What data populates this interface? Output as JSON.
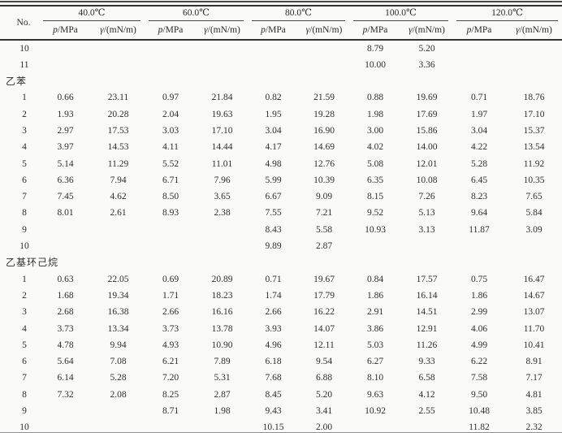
{
  "table": {
    "no_header": "No.",
    "temps": [
      "40.0℃",
      "60.0℃",
      "80.0℃",
      "100.0℃",
      "120.0℃"
    ],
    "p_sym": "p",
    "p_unit": "/MPa",
    "g_sym": "γ",
    "g_unit": "/(mN/m)",
    "colors": {
      "background": "#fafaf8",
      "text": "#2e2e2e",
      "rule": "#333333"
    },
    "sections": [
      {
        "title": "",
        "rows": [
          {
            "no": "10",
            "v": [
              "",
              "",
              "",
              "",
              "",
              "",
              "8.79",
              "5.20",
              "",
              ""
            ]
          },
          {
            "no": "11",
            "v": [
              "",
              "",
              "",
              "",
              "",
              "",
              "10.00",
              "3.36",
              "",
              ""
            ]
          }
        ]
      },
      {
        "title": "乙苯",
        "rows": [
          {
            "no": "1",
            "v": [
              "0.66",
              "23.11",
              "0.97",
              "21.84",
              "0.82",
              "21.59",
              "0.88",
              "19.69",
              "0.71",
              "18.76"
            ]
          },
          {
            "no": "2",
            "v": [
              "1.93",
              "20.28",
              "2.04",
              "19.63",
              "1.95",
              "19.28",
              "1.98",
              "17.69",
              "1.97",
              "17.10"
            ]
          },
          {
            "no": "3",
            "v": [
              "2.97",
              "17.53",
              "3.03",
              "17.10",
              "3.04",
              "16.90",
              "3.00",
              "15.86",
              "3.04",
              "15.37"
            ]
          },
          {
            "no": "4",
            "v": [
              "3.97",
              "14.53",
              "4.11",
              "14.44",
              "4.17",
              "14.69",
              "4.02",
              "14.00",
              "4.22",
              "13.54"
            ]
          },
          {
            "no": "5",
            "v": [
              "5.14",
              "11.29",
              "5.52",
              "11.01",
              "4.98",
              "12.76",
              "5.08",
              "12.01",
              "5.28",
              "11.92"
            ]
          },
          {
            "no": "6",
            "v": [
              "6.36",
              "7.94",
              "6.71",
              "7.96",
              "5.99",
              "10.39",
              "6.35",
              "10.08",
              "6.45",
              "10.35"
            ]
          },
          {
            "no": "7",
            "v": [
              "7.45",
              "4.62",
              "8.50",
              "3.65",
              "6.67",
              "9.09",
              "8.15",
              "7.26",
              "8.23",
              "7.65"
            ]
          },
          {
            "no": "8",
            "v": [
              "8.01",
              "2.61",
              "8.93",
              "2.38",
              "7.55",
              "7.21",
              "9.52",
              "5.13",
              "9.64",
              "5.84"
            ]
          },
          {
            "no": "9",
            "v": [
              "",
              "",
              "",
              "",
              "8.43",
              "5.58",
              "10.93",
              "3.13",
              "11.87",
              "3.09"
            ]
          },
          {
            "no": "10",
            "v": [
              "",
              "",
              "",
              "",
              "9.89",
              "2.87",
              "",
              "",
              "",
              ""
            ]
          }
        ]
      },
      {
        "title": "乙基环己烷",
        "rows": [
          {
            "no": "1",
            "v": [
              "0.63",
              "22.05",
              "0.69",
              "20.89",
              "0.71",
              "19.67",
              "0.84",
              "17.57",
              "0.75",
              "16.47"
            ]
          },
          {
            "no": "2",
            "v": [
              "1.68",
              "19.34",
              "1.71",
              "18.23",
              "1.74",
              "17.79",
              "1.86",
              "16.14",
              "1.86",
              "14.67"
            ]
          },
          {
            "no": "3",
            "v": [
              "2.68",
              "16.38",
              "2.66",
              "16.16",
              "2.66",
              "16.22",
              "2.91",
              "14.51",
              "2.99",
              "13.07"
            ]
          },
          {
            "no": "4",
            "v": [
              "3.73",
              "13.34",
              "3.73",
              "13.78",
              "3.93",
              "14.07",
              "3.86",
              "12.91",
              "4.06",
              "11.70"
            ]
          },
          {
            "no": "5",
            "v": [
              "4.78",
              "9.94",
              "4.93",
              "10.90",
              "4.96",
              "12.11",
              "5.03",
              "11.26",
              "4.99",
              "10.41"
            ]
          },
          {
            "no": "6",
            "v": [
              "5.64",
              "7.08",
              "6.21",
              "7.89",
              "6.18",
              "9.54",
              "6.27",
              "9.33",
              "6.22",
              "8.91"
            ]
          },
          {
            "no": "7",
            "v": [
              "6.14",
              "5.28",
              "7.20",
              "5.31",
              "7.68",
              "6.88",
              "8.10",
              "6.58",
              "7.58",
              "7.17"
            ]
          },
          {
            "no": "8",
            "v": [
              "7.32",
              "2.08",
              "8.25",
              "2.87",
              "8.45",
              "5.20",
              "9.63",
              "4.12",
              "9.50",
              "4.81"
            ]
          },
          {
            "no": "9",
            "v": [
              "",
              "",
              "8.71",
              "1.98",
              "9.43",
              "3.41",
              "10.92",
              "2.55",
              "10.48",
              "3.85"
            ]
          },
          {
            "no": "10",
            "v": [
              "",
              "",
              "",
              "",
              "10.15",
              "2.00",
              "",
              "",
              "11.82",
              "2.32"
            ]
          }
        ]
      }
    ]
  }
}
